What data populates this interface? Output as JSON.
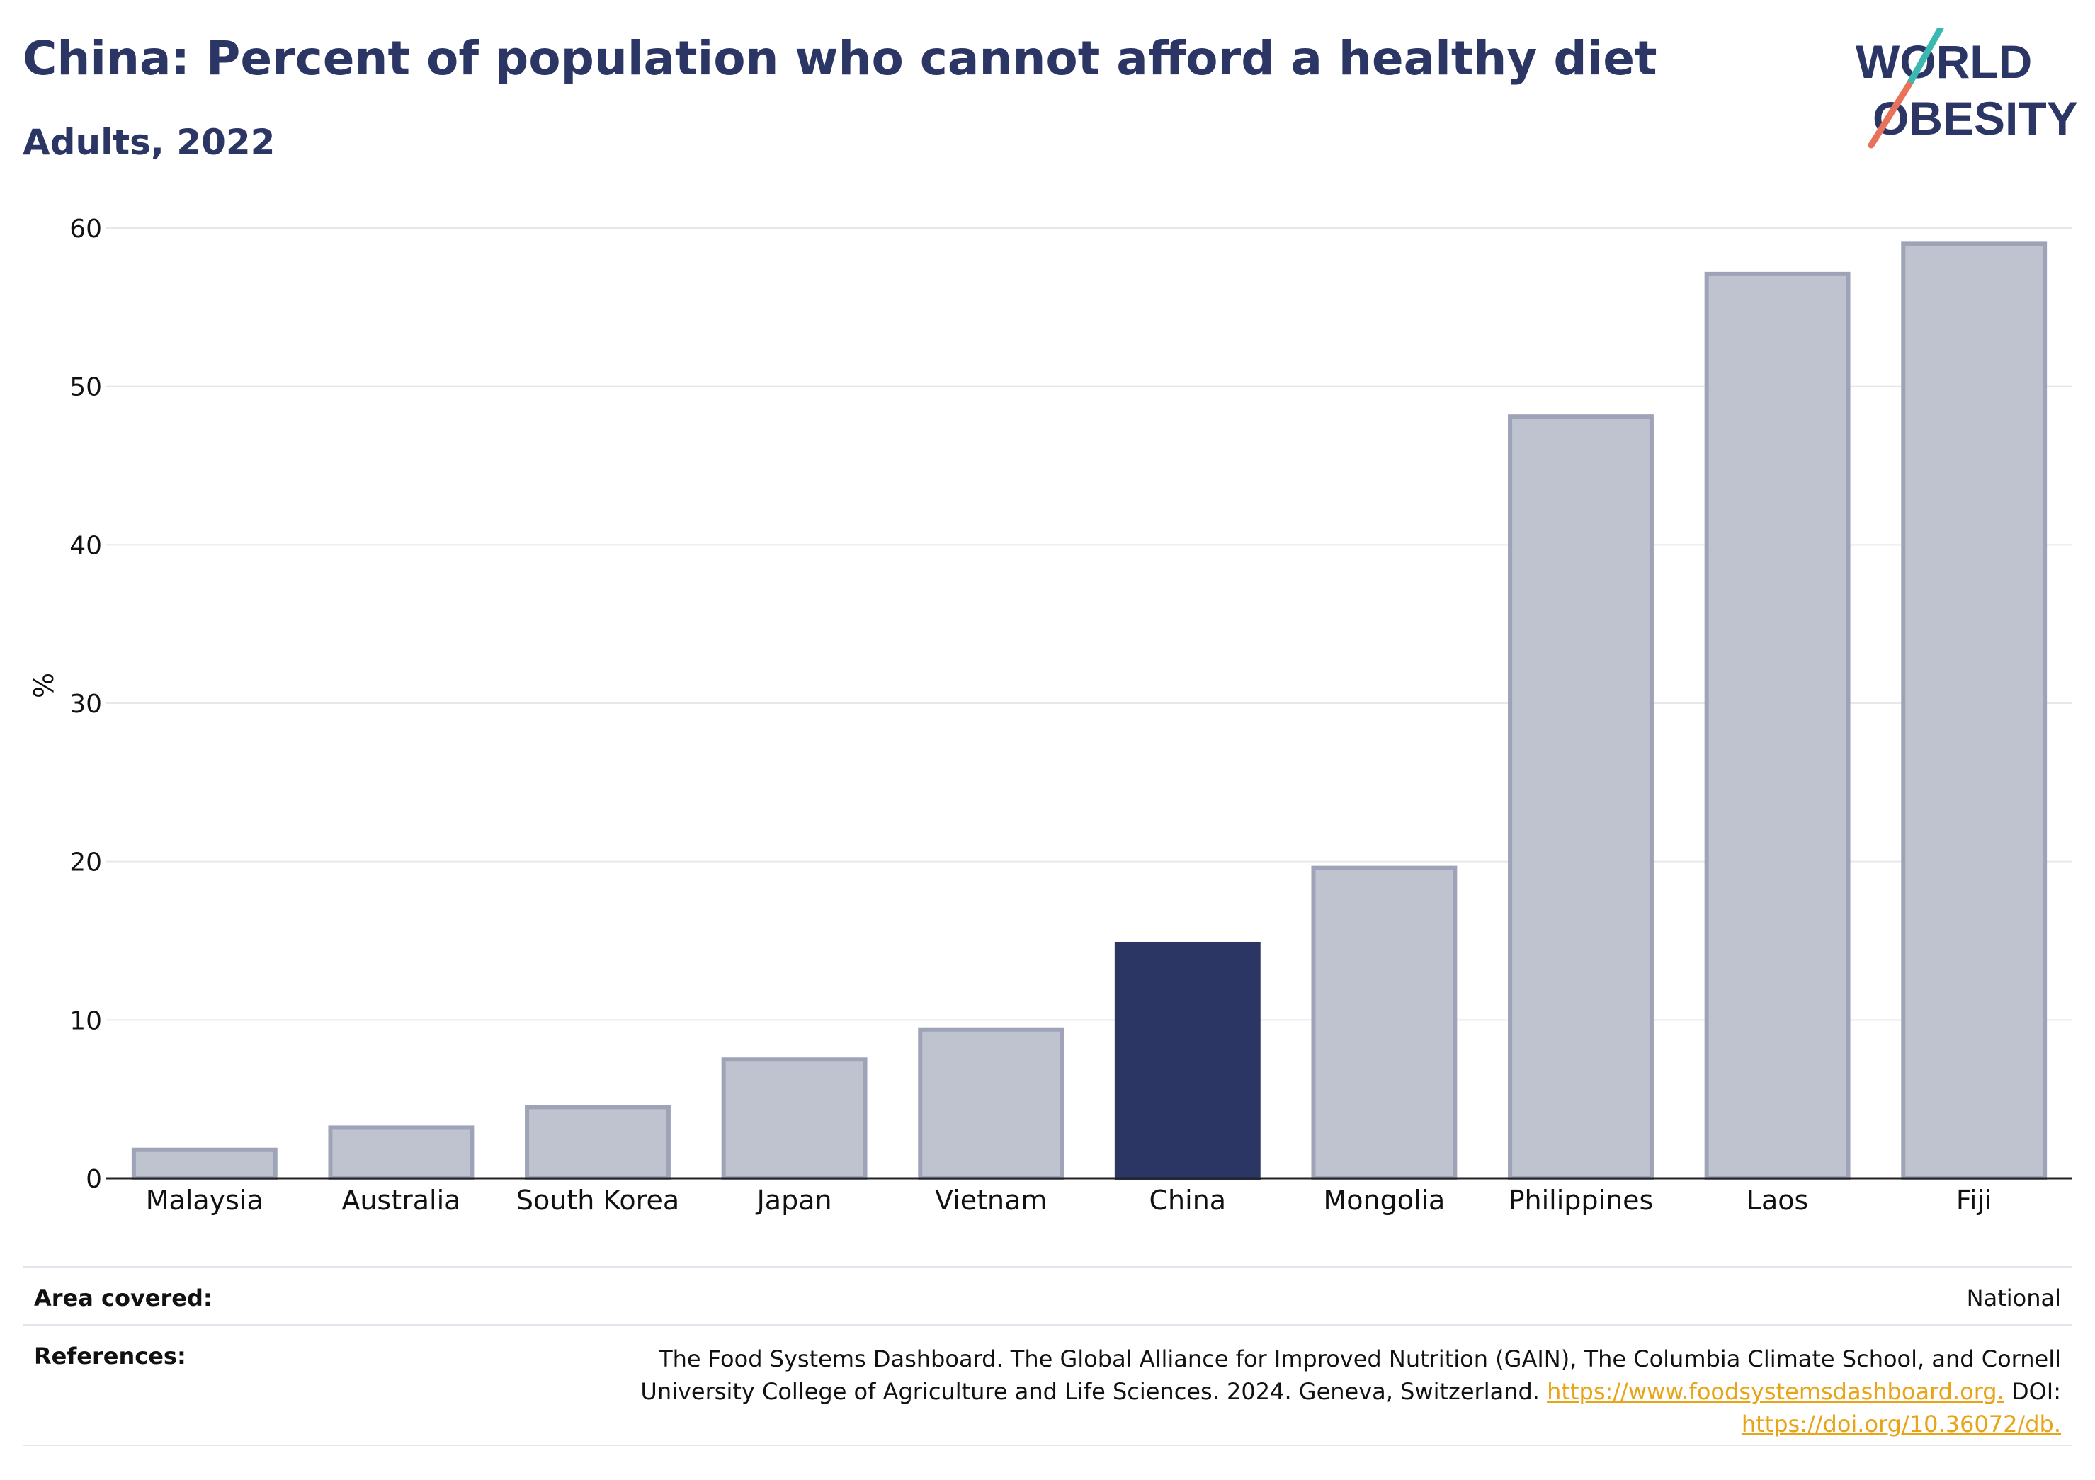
{
  "header": {
    "title": "China: Percent of population who cannot afford a healthy diet",
    "subtitle": "Adults, 2022"
  },
  "logo": {
    "line1": "WORLD",
    "line2": "OBESITY"
  },
  "colors": {
    "highlight": "#2b3665",
    "bar": "#bfc2cf",
    "bar_border": "#9ea3b8",
    "link": "#e8a317"
  },
  "chart_data": {
    "type": "bar",
    "title": "China: Percent of population who cannot afford a healthy diet",
    "subtitle": "Adults, 2022",
    "xlabel": "",
    "ylabel": "%",
    "categories": [
      "Malaysia",
      "Australia",
      "South Korea",
      "Japan",
      "Vietnam",
      "China",
      "Mongolia",
      "Philippines",
      "Laos",
      "Fiji"
    ],
    "values": [
      1.8,
      3.2,
      4.5,
      7.5,
      9.4,
      14.8,
      19.6,
      48.1,
      57.1,
      59.0
    ],
    "highlight": "China",
    "ylim": [
      0,
      60
    ],
    "yticks": [
      0,
      10,
      20,
      30,
      40,
      50,
      60
    ],
    "grid": true,
    "legend": "none"
  },
  "footer": {
    "area_label": "Area covered:",
    "area_value": "National",
    "references_label": "References:",
    "references_text": "The Food Systems Dashboard. The Global Alliance for Improved Nutrition (GAIN), The Columbia Climate School, and Cornell University College of Agriculture and Life Sciences. 2024. Geneva, Switzerland.",
    "references_link1": "https://www.foodsystemsdashboard.org.",
    "references_doi_label": "DOI:",
    "references_link2": "https://doi.org/10.36072/db."
  }
}
